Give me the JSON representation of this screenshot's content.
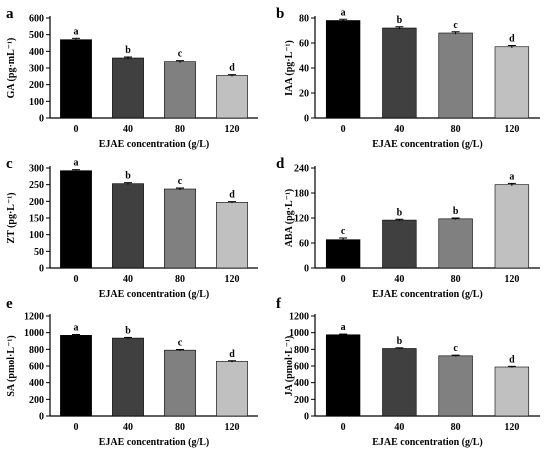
{
  "chart_data": [
    {
      "panel": "a",
      "type": "bar",
      "categories": [
        "0",
        "40",
        "80",
        "120"
      ],
      "values": [
        470,
        360,
        338,
        255
      ],
      "errors": [
        8,
        6,
        6,
        5
      ],
      "significance": [
        "a",
        "b",
        "c",
        "d"
      ],
      "ylabel": "GA (pg·mL⁻¹)",
      "xlabel": "EJAE concentration (g/L)",
      "ylim": [
        0,
        600
      ],
      "yticks": [
        0,
        100,
        200,
        300,
        400,
        500,
        600
      ],
      "colors": [
        "#000000",
        "#404040",
        "#808080",
        "#c0c0c0"
      ]
    },
    {
      "panel": "b",
      "type": "bar",
      "categories": [
        "0",
        "40",
        "80",
        "120"
      ],
      "values": [
        78,
        72,
        68,
        57
      ],
      "errors": [
        1,
        1,
        1,
        1
      ],
      "significance": [
        "a",
        "b",
        "c",
        "d"
      ],
      "ylabel": "IAA (pg·L⁻¹)",
      "xlabel": "EJAE concentration (g/L)",
      "ylim": [
        0,
        80
      ],
      "yticks": [
        0,
        20,
        40,
        60,
        80
      ],
      "colors": [
        "#000000",
        "#404040",
        "#808080",
        "#c0c0c0"
      ]
    },
    {
      "panel": "c",
      "type": "bar",
      "categories": [
        "0",
        "40",
        "80",
        "120"
      ],
      "values": [
        292,
        253,
        237,
        197
      ],
      "errors": [
        3,
        3,
        3,
        2
      ],
      "significance": [
        "a",
        "b",
        "c",
        "d"
      ],
      "ylabel": "ZT (pg·L⁻¹)",
      "xlabel": "EJAE concentration (g/L)",
      "ylim": [
        0,
        300
      ],
      "yticks": [
        0,
        50,
        100,
        150,
        200,
        250,
        300
      ],
      "colors": [
        "#000000",
        "#404040",
        "#808080",
        "#c0c0c0"
      ]
    },
    {
      "panel": "d",
      "type": "bar",
      "categories": [
        "0",
        "40",
        "80",
        "120"
      ],
      "values": [
        68,
        115,
        118,
        200
      ],
      "errors": [
        4,
        2,
        2,
        3
      ],
      "significance": [
        "c",
        "b",
        "b",
        "a"
      ],
      "ylabel": "ABA (pg·L⁻¹)",
      "xlabel": "EJAE concentration (g/L)",
      "ylim": [
        0,
        240
      ],
      "yticks": [
        0,
        60,
        120,
        180,
        240
      ],
      "colors": [
        "#000000",
        "#404040",
        "#808080",
        "#c0c0c0"
      ]
    },
    {
      "panel": "e",
      "type": "bar",
      "categories": [
        "0",
        "40",
        "80",
        "120"
      ],
      "values": [
        968,
        935,
        790,
        655
      ],
      "errors": [
        10,
        8,
        8,
        8
      ],
      "significance": [
        "a",
        "b",
        "c",
        "d"
      ],
      "ylabel": "SA (pmol·L⁻¹)",
      "xlabel": "EJAE concentration (g/L)",
      "ylim": [
        0,
        1200
      ],
      "yticks": [
        0,
        200,
        400,
        600,
        800,
        1000,
        1200
      ],
      "colors": [
        "#000000",
        "#404040",
        "#808080",
        "#c0c0c0"
      ]
    },
    {
      "panel": "f",
      "type": "bar",
      "categories": [
        "0",
        "40",
        "80",
        "120"
      ],
      "values": [
        975,
        810,
        722,
        588
      ],
      "errors": [
        8,
        8,
        8,
        8
      ],
      "significance": [
        "a",
        "b",
        "c",
        "d"
      ],
      "ylabel": "JA (pmol·L⁻¹)",
      "xlabel": "EJAE concentration (g/L)",
      "ylim": [
        0,
        1200
      ],
      "yticks": [
        0,
        200,
        400,
        600,
        800,
        1000,
        1200
      ],
      "colors": [
        "#000000",
        "#404040",
        "#808080",
        "#c0c0c0"
      ]
    }
  ]
}
